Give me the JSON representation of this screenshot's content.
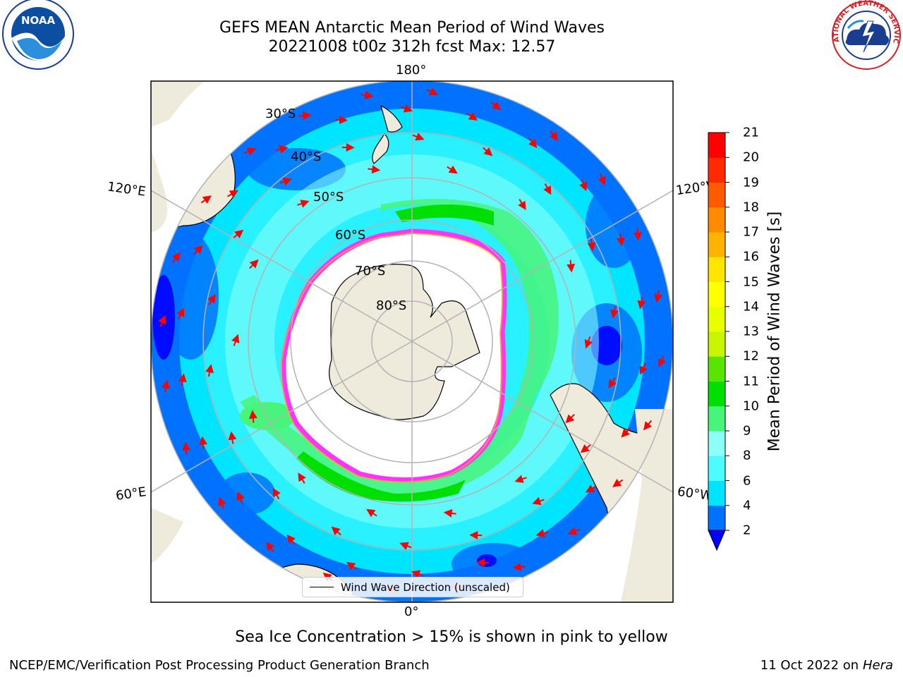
{
  "title": {
    "line1": "GEFS MEAN Antarctic Mean Period of Wind Waves",
    "line2": "20221008 t00z 312h fcst   Max: 12.57"
  },
  "map": {
    "longitude_labels": {
      "top": "180°",
      "bottom": "0°",
      "upper_left": "120°E",
      "upper_right": "120°W",
      "lower_left": "60°E",
      "lower_right": "60°W"
    },
    "latitude_labels": [
      "30°S",
      "40°S",
      "50°S",
      "60°S",
      "70°S",
      "80°S"
    ],
    "legend_label": "Wind Wave Direction (unscaled)",
    "colors": {
      "land": "#efebdc",
      "ocean_low": "#0072ff",
      "ocean_mid": "#00e5ff",
      "ocean_light": "#8dfff8",
      "green": "#3ddc5a",
      "ice": "#ff33ff",
      "arrows": "#ff0000"
    }
  },
  "colorbar": {
    "label": "Mean Period of Wind Waves [s]",
    "ticks": [
      "2",
      "4",
      "6",
      "8",
      "9",
      "10",
      "11",
      "12",
      "13",
      "14",
      "15",
      "16",
      "17",
      "18",
      "19",
      "20",
      "21"
    ],
    "colors": [
      "#0072ff",
      "#00e5ff",
      "#4dfcff",
      "#8dfff8",
      "#47f57a",
      "#00e000",
      "#5ae500",
      "#c9f500",
      "#e8ff00",
      "#ffff00",
      "#ffe600",
      "#ffb300",
      "#ff8c00",
      "#ff5a00",
      "#ff2a00",
      "#ff0000"
    ],
    "under_color": "#0000ff"
  },
  "note": "Sea Ice Concentration > 15% is shown in pink to yellow",
  "footer": {
    "left": "NCEP/EMC/Verification Post Processing Product Generation Branch",
    "date": "11 Oct 2022 on ",
    "machine": "Hera"
  },
  "logos": {
    "noaa_text": "NOAA",
    "nws_text": "NATIONAL WEATHER SERVICE"
  }
}
